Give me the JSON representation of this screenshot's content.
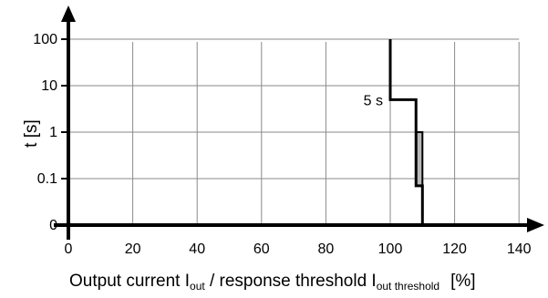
{
  "chart_data": {
    "type": "line",
    "title": "",
    "xlabel": {
      "main": "Output current I",
      "sub1": "out",
      "mid": " / response threshold I",
      "sub2": "out threshold",
      "unit": "[%]"
    },
    "ylabel": "t [s]",
    "xticks": [
      0,
      20,
      40,
      60,
      80,
      100,
      120,
      140
    ],
    "yticks": [
      "0",
      "0.1",
      "1",
      "10",
      "100"
    ],
    "yscale": "log (0 at bottom)",
    "xlim": [
      0,
      140
    ],
    "grid": true,
    "annotation": "5 s",
    "series": [
      {
        "x": [
          100,
          100,
          108,
          108,
          110,
          110
        ],
        "y": [
          100,
          5,
          5,
          0.07,
          0.07,
          0
        ]
      },
      {
        "x": [
          108,
          110,
          110,
          108
        ],
        "y": [
          1,
          1,
          0.07,
          0.07
        ]
      }
    ]
  }
}
